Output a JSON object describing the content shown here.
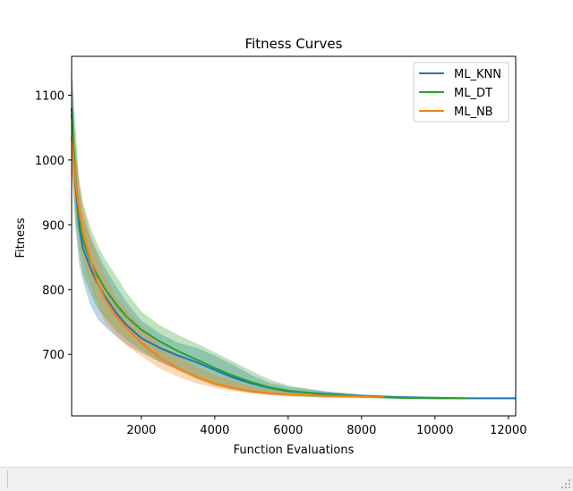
{
  "chart_data": {
    "type": "line",
    "title": "Fitness Curves",
    "xlabel": "Function Evaluations",
    "ylabel": "Fitness",
    "xlim": [
      100,
      12200
    ],
    "ylim": [
      605,
      1160
    ],
    "xticks": [
      2000,
      4000,
      6000,
      8000,
      10000,
      12000
    ],
    "yticks": [
      700,
      800,
      900,
      1000,
      1100
    ],
    "grid": false,
    "legend_position": "top-right",
    "series": [
      {
        "name": "ML_KNN",
        "color": "#1f77b4",
        "x": [
          100,
          200,
          300,
          400,
          600,
          800,
          1000,
          1300,
          1600,
          2000,
          2500,
          3000,
          3500,
          4000,
          4500,
          5000,
          5500,
          6000,
          7000,
          8000,
          9000,
          10000,
          11000,
          12200
        ],
        "y": [
          1080,
          965,
          900,
          865,
          835,
          810,
          790,
          765,
          745,
          725,
          710,
          698,
          688,
          676,
          664,
          655,
          648,
          643,
          639,
          636,
          634,
          633,
          632,
          632
        ],
        "lower": [
          1015,
          900,
          840,
          815,
          778,
          755,
          743,
          728,
          715,
          702,
          688,
          677,
          664,
          653,
          646,
          641,
          638,
          636,
          634,
          633,
          632,
          631,
          631,
          631
        ],
        "upper": [
          1150,
          1030,
          960,
          918,
          882,
          858,
          835,
          806,
          780,
          752,
          732,
          718,
          710,
          698,
          684,
          668,
          656,
          650,
          643,
          638,
          635,
          633,
          633,
          633
        ]
      },
      {
        "name": "ML_DT",
        "color": "#2ca02c",
        "x": [
          100,
          200,
          300,
          400,
          600,
          800,
          1000,
          1300,
          1600,
          2000,
          2500,
          3000,
          3500,
          4000,
          4500,
          5000,
          5500,
          6000,
          7000,
          8000,
          9000,
          10000,
          10900
        ],
        "y": [
          1070,
          975,
          915,
          878,
          845,
          822,
          802,
          778,
          758,
          738,
          720,
          705,
          692,
          679,
          667,
          657,
          649,
          644,
          638,
          635,
          633,
          632,
          632
        ],
        "lower": [
          990,
          905,
          858,
          825,
          796,
          772,
          757,
          737,
          722,
          706,
          688,
          675,
          662,
          651,
          645,
          640,
          637,
          635,
          633,
          632,
          631,
          631,
          631
        ],
        "upper": [
          1140,
          1055,
          975,
          935,
          898,
          870,
          848,
          822,
          795,
          766,
          745,
          730,
          717,
          703,
          689,
          674,
          661,
          652,
          643,
          638,
          635,
          633,
          633
        ]
      },
      {
        "name": "ML_NB",
        "color": "#ff7f0e",
        "x": [
          100,
          200,
          300,
          400,
          600,
          800,
          1000,
          1300,
          1600,
          2000,
          2500,
          3000,
          3500,
          4000,
          4500,
          5000,
          5500,
          6000,
          7000,
          8000,
          8600
        ],
        "y": [
          1035,
          970,
          925,
          890,
          848,
          812,
          786,
          760,
          740,
          718,
          695,
          678,
          665,
          655,
          648,
          643,
          640,
          638,
          636,
          635,
          634
        ],
        "lower": [
          985,
          920,
          878,
          845,
          810,
          778,
          750,
          730,
          713,
          697,
          678,
          665,
          655,
          648,
          643,
          640,
          637,
          636,
          634,
          633,
          633
        ],
        "upper": [
          1125,
          1020,
          968,
          935,
          888,
          850,
          822,
          790,
          768,
          742,
          715,
          697,
          681,
          668,
          659,
          651,
          646,
          642,
          638,
          636,
          635
        ]
      }
    ]
  }
}
